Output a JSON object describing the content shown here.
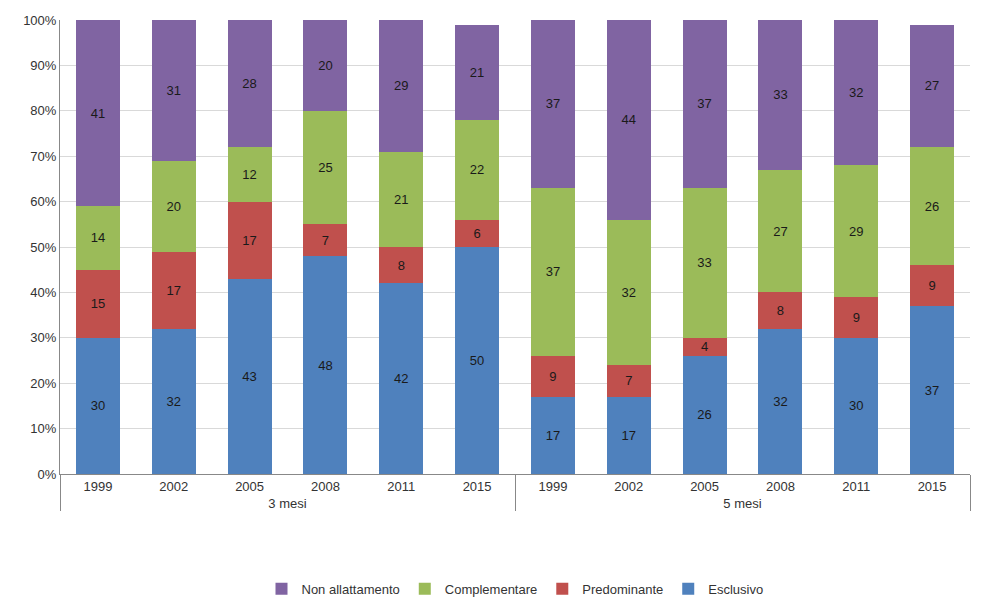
{
  "chart_data": {
    "type": "bar",
    "stacked": true,
    "categories": [
      "1999",
      "2002",
      "2005",
      "2008",
      "2011",
      "2015",
      "1999",
      "2002",
      "2005",
      "2008",
      "2011",
      "2015"
    ],
    "groups": [
      "3 mesi",
      "3 mesi",
      "3 mesi",
      "3 mesi",
      "3 mesi",
      "3 mesi",
      "5 mesi",
      "5 mesi",
      "5 mesi",
      "5 mesi",
      "5 mesi",
      "5 mesi"
    ],
    "series": [
      {
        "name": "Esclusivo",
        "color": "#4f81bd",
        "values": [
          30,
          32,
          43,
          48,
          42,
          50,
          17,
          17,
          26,
          32,
          30,
          37
        ]
      },
      {
        "name": "Predominante",
        "color": "#c0504d",
        "values": [
          15,
          17,
          17,
          7,
          8,
          6,
          9,
          7,
          4,
          8,
          9,
          9
        ]
      },
      {
        "name": "Complementare",
        "color": "#9bbb59",
        "values": [
          14,
          20,
          12,
          25,
          21,
          22,
          37,
          32,
          33,
          27,
          29,
          26
        ]
      },
      {
        "name": "Non allattamento",
        "color": "#8064a2",
        "values": [
          41,
          31,
          28,
          20,
          29,
          21,
          37,
          44,
          37,
          33,
          32,
          27
        ]
      }
    ],
    "ylim": [
      0,
      100
    ],
    "yticks": [
      {
        "value": 0,
        "label": "0%"
      },
      {
        "value": 10,
        "label": "10%"
      },
      {
        "value": 20,
        "label": "20%"
      },
      {
        "value": 30,
        "label": "30%"
      },
      {
        "value": 40,
        "label": "40%"
      },
      {
        "value": 50,
        "label": "50%"
      },
      {
        "value": 60,
        "label": "60%"
      },
      {
        "value": 70,
        "label": "70%"
      },
      {
        "value": 80,
        "label": "80%"
      },
      {
        "value": 90,
        "label": "90%"
      },
      {
        "value": 100,
        "label": "100%"
      }
    ],
    "grid": true,
    "legend": "bottom",
    "data_labels": true
  }
}
